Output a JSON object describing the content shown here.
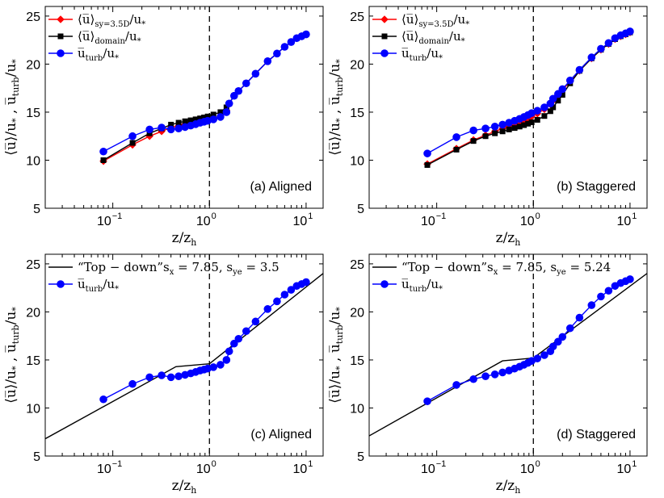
{
  "figure": {
    "xlabel": "z/z",
    "xlabel_sub": "h",
    "ylabel_a": "⟨u̅⟩/u",
    "ylabel_b": "u̅",
    "ylabel_b_sub": "turb",
    "ylabel_sep": " , ",
    "ystar": "*",
    "ylabel_b_tail": "/u"
  },
  "chart_data": [
    {
      "type": "line",
      "panel_label": "(a) Aligned",
      "xscale": "log",
      "xlim": [
        0.02,
        15
      ],
      "ylim": [
        5,
        26
      ],
      "yticks": [
        5,
        10,
        15,
        20,
        25
      ],
      "xticks": [
        0.1,
        1,
        10
      ],
      "xtick_labels": [
        "10",
        "10",
        "10"
      ],
      "xtick_exps": [
        "−1",
        "0",
        "1"
      ],
      "vline_x": 1,
      "legend_position": "top-left",
      "legend": [
        {
          "text": "⟨u̅⟩",
          "sub": "sy=3.5D",
          "tail": "/u",
          "star": "*",
          "color": "#ff0000",
          "marker": "diamond"
        },
        {
          "text": "⟨u̅⟩",
          "sub": "domain",
          "tail": "/u",
          "star": "*",
          "color": "#000000",
          "marker": "square"
        },
        {
          "text": "u̅",
          "sub": "turb",
          "tail": "/u",
          "star": "*",
          "color": "#0000ff",
          "marker": "circle"
        }
      ],
      "series": [
        {
          "name": "s_y=3.5D",
          "color": "#ff0000",
          "marker": "diamond",
          "x": [
            0.08,
            0.16,
            0.24,
            0.32,
            0.4,
            0.48,
            0.56,
            0.64,
            0.72,
            0.8,
            0.88,
            0.96,
            1.1,
            1.3,
            1.5,
            1.6,
            1.8,
            2,
            2.4,
            3,
            4,
            5,
            6,
            7,
            8,
            9,
            10
          ],
          "y": [
            9.9,
            11.6,
            12.5,
            13.0,
            13.4,
            13.6,
            13.75,
            13.85,
            13.95,
            14.05,
            14.12,
            14.2,
            14.35,
            14.6,
            15.2,
            15.9,
            16.7,
            17.2,
            18.0,
            19.0,
            20.3,
            21.1,
            21.8,
            22.3,
            22.7,
            22.9,
            23.1
          ]
        },
        {
          "name": "domain",
          "color": "#000000",
          "marker": "square",
          "x": [
            0.08,
            0.16,
            0.24,
            0.32,
            0.4,
            0.48,
            0.56,
            0.64,
            0.72,
            0.8,
            0.88,
            0.96,
            1.1,
            1.3,
            1.5,
            1.6,
            1.8,
            2,
            2.4,
            3,
            4,
            5,
            6,
            7,
            8,
            9,
            10
          ],
          "y": [
            10.0,
            11.8,
            12.8,
            13.3,
            13.7,
            13.9,
            14.05,
            14.15,
            14.25,
            14.35,
            14.45,
            14.55,
            14.75,
            15.0,
            15.5,
            15.9,
            16.7,
            17.2,
            18.0,
            19.0,
            20.3,
            21.1,
            21.8,
            22.3,
            22.7,
            22.9,
            23.1
          ]
        },
        {
          "name": "turb",
          "color": "#0000ff",
          "marker": "circle",
          "x": [
            0.08,
            0.16,
            0.24,
            0.32,
            0.4,
            0.48,
            0.56,
            0.64,
            0.72,
            0.8,
            0.88,
            0.96,
            1.1,
            1.3,
            1.5,
            1.6,
            1.8,
            2,
            2.4,
            3,
            4,
            5,
            6,
            7,
            8,
            9,
            10
          ],
          "y": [
            10.9,
            12.5,
            13.2,
            13.4,
            13.2,
            13.3,
            13.45,
            13.6,
            13.75,
            13.9,
            14.0,
            14.1,
            14.25,
            14.5,
            15.0,
            15.9,
            16.7,
            17.2,
            18.0,
            19.0,
            20.3,
            21.1,
            21.8,
            22.3,
            22.7,
            22.9,
            23.1
          ]
        }
      ]
    },
    {
      "type": "line",
      "panel_label": "(b) Staggered",
      "xscale": "log",
      "xlim": [
        0.02,
        15
      ],
      "ylim": [
        5,
        26
      ],
      "yticks": [
        5,
        10,
        15,
        20,
        25
      ],
      "xticks": [
        0.1,
        1,
        10
      ],
      "xtick_labels": [
        "10",
        "10",
        "10"
      ],
      "xtick_exps": [
        "−1",
        "0",
        "1"
      ],
      "vline_x": 1,
      "legend_position": "top-left",
      "legend": [
        {
          "text": "⟨u̅⟩",
          "sub": "sy=3.5D",
          "tail": "/u",
          "star": "*",
          "color": "#ff0000",
          "marker": "diamond"
        },
        {
          "text": "⟨u̅⟩",
          "sub": "domain",
          "tail": "/u",
          "star": "*",
          "color": "#000000",
          "marker": "square"
        },
        {
          "text": "u̅",
          "sub": "turb",
          "tail": "/u",
          "star": "*",
          "color": "#0000ff",
          "marker": "circle"
        }
      ],
      "series": [
        {
          "name": "s_y=3.5D",
          "color": "#ff0000",
          "marker": "diamond",
          "x": [
            0.08,
            0.16,
            0.24,
            0.32,
            0.4,
            0.48,
            0.56,
            0.64,
            0.72,
            0.8,
            0.88,
            0.96,
            1.1,
            1.3,
            1.5,
            1.6,
            1.8,
            2,
            2.4,
            3,
            4,
            5,
            6,
            7,
            8,
            9,
            10
          ],
          "y": [
            9.6,
            11.2,
            12.1,
            12.6,
            13.0,
            13.3,
            13.55,
            13.75,
            13.95,
            14.15,
            14.35,
            14.55,
            14.85,
            15.3,
            15.8,
            16.2,
            16.8,
            17.3,
            18.2,
            19.3,
            20.6,
            21.5,
            22.1,
            22.6,
            22.9,
            23.1,
            23.3
          ]
        },
        {
          "name": "domain",
          "color": "#000000",
          "marker": "square",
          "x": [
            0.08,
            0.16,
            0.24,
            0.32,
            0.4,
            0.48,
            0.56,
            0.64,
            0.72,
            0.8,
            0.88,
            0.96,
            1.1,
            1.3,
            1.5,
            1.6,
            1.8,
            2,
            2.4,
            3,
            4,
            5,
            6,
            7,
            8,
            9,
            10
          ],
          "y": [
            9.5,
            11.1,
            12.0,
            12.5,
            12.8,
            13.0,
            13.2,
            13.35,
            13.5,
            13.65,
            13.8,
            13.95,
            14.2,
            14.6,
            15.1,
            15.5,
            16.2,
            16.8,
            18.0,
            19.3,
            20.6,
            21.5,
            22.1,
            22.6,
            22.9,
            23.1,
            23.3
          ]
        },
        {
          "name": "turb",
          "color": "#0000ff",
          "marker": "circle",
          "x": [
            0.08,
            0.16,
            0.24,
            0.32,
            0.4,
            0.48,
            0.56,
            0.64,
            0.72,
            0.8,
            0.88,
            0.96,
            1.1,
            1.3,
            1.5,
            1.6,
            1.8,
            2,
            2.4,
            3,
            4,
            5,
            6,
            7,
            8,
            9,
            10
          ],
          "y": [
            10.7,
            12.4,
            13.1,
            13.3,
            13.5,
            13.7,
            13.9,
            14.1,
            14.3,
            14.5,
            14.7,
            14.9,
            15.15,
            15.5,
            15.9,
            16.4,
            16.9,
            17.4,
            18.3,
            19.4,
            20.7,
            21.6,
            22.2,
            22.7,
            23.0,
            23.2,
            23.4
          ]
        }
      ]
    },
    {
      "type": "line",
      "panel_label": "(c) Aligned",
      "xscale": "log",
      "xlim": [
        0.02,
        15
      ],
      "ylim": [
        5,
        26
      ],
      "yticks": [
        5,
        10,
        15,
        20,
        25
      ],
      "xticks": [
        0.1,
        1,
        10
      ],
      "xtick_labels": [
        "10",
        "10",
        "10"
      ],
      "xtick_exps": [
        "−1",
        "0",
        "1"
      ],
      "vline_x": 1,
      "legend_position": "top-left",
      "legend": [
        {
          "text": "“Top − down”s",
          "sub": "x",
          "tail": " = 7.85, s",
          "sub2": "ye",
          "tail2": " = 3.5",
          "color": "#000000",
          "marker": "none"
        },
        {
          "text": "u̅",
          "sub": "turb",
          "tail": "/u",
          "star": "*",
          "color": "#0000ff",
          "marker": "circle"
        }
      ],
      "series": [
        {
          "name": "top-down model",
          "color": "#000000",
          "marker": "none",
          "x": [
            0.02,
            0.45,
            1.0,
            15
          ],
          "y": [
            6.8,
            14.3,
            14.6,
            24.0
          ]
        },
        {
          "name": "turb",
          "color": "#0000ff",
          "marker": "circle",
          "x": [
            0.08,
            0.16,
            0.24,
            0.32,
            0.4,
            0.48,
            0.56,
            0.64,
            0.72,
            0.8,
            0.88,
            0.96,
            1.1,
            1.3,
            1.5,
            1.6,
            1.8,
            2,
            2.4,
            3,
            4,
            5,
            6,
            7,
            8,
            9,
            10
          ],
          "y": [
            10.9,
            12.5,
            13.2,
            13.4,
            13.2,
            13.3,
            13.45,
            13.6,
            13.75,
            13.9,
            14.0,
            14.1,
            14.25,
            14.5,
            15.0,
            15.9,
            16.7,
            17.2,
            18.0,
            19.0,
            20.3,
            21.1,
            21.8,
            22.3,
            22.7,
            22.9,
            23.1
          ]
        }
      ]
    },
    {
      "type": "line",
      "panel_label": "(d) Staggered",
      "xscale": "log",
      "xlim": [
        0.02,
        15
      ],
      "ylim": [
        5,
        26
      ],
      "yticks": [
        5,
        10,
        15,
        20,
        25
      ],
      "xticks": [
        0.1,
        1,
        10
      ],
      "xtick_labels": [
        "10",
        "10",
        "10"
      ],
      "xtick_exps": [
        "−1",
        "0",
        "1"
      ],
      "vline_x": 1,
      "legend_position": "top-left",
      "legend": [
        {
          "text": "“Top − down”s",
          "sub": "x",
          "tail": " = 7.85, s",
          "sub2": "ye",
          "tail2": " = 5.24",
          "color": "#000000",
          "marker": "none"
        },
        {
          "text": "u̅",
          "sub": "turb",
          "tail": "/u",
          "star": "*",
          "color": "#0000ff",
          "marker": "circle"
        }
      ],
      "series": [
        {
          "name": "top-down model",
          "color": "#000000",
          "marker": "none",
          "x": [
            0.02,
            0.48,
            1.0,
            15
          ],
          "y": [
            7.1,
            14.9,
            15.2,
            24.0
          ]
        },
        {
          "name": "turb",
          "color": "#0000ff",
          "marker": "circle",
          "x": [
            0.08,
            0.16,
            0.24,
            0.32,
            0.4,
            0.48,
            0.56,
            0.64,
            0.72,
            0.8,
            0.88,
            0.96,
            1.1,
            1.3,
            1.5,
            1.6,
            1.8,
            2,
            2.4,
            3,
            4,
            5,
            6,
            7,
            8,
            9,
            10
          ],
          "y": [
            10.7,
            12.4,
            13.0,
            13.3,
            13.5,
            13.7,
            13.9,
            14.1,
            14.3,
            14.5,
            14.7,
            14.9,
            15.15,
            15.5,
            15.9,
            16.4,
            16.9,
            17.4,
            18.3,
            19.4,
            20.7,
            21.6,
            22.2,
            22.7,
            23.0,
            23.2,
            23.4
          ]
        }
      ]
    }
  ]
}
